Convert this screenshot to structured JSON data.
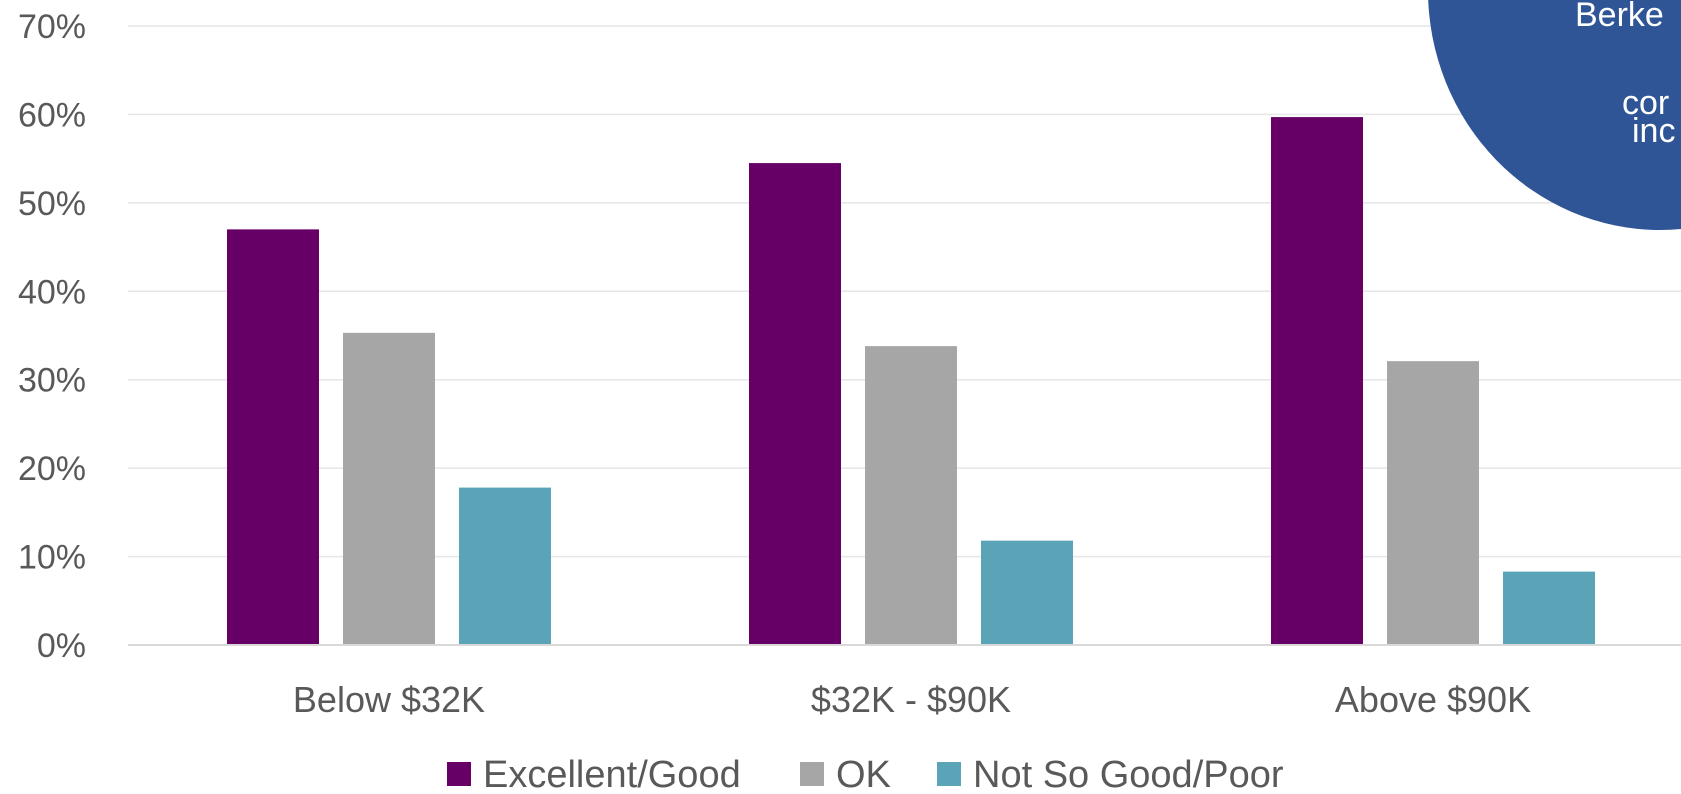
{
  "chart_data": {
    "type": "bar",
    "categories": [
      "Below $32K",
      "$32K - $90K",
      "Above $90K"
    ],
    "series": [
      {
        "name": "Excellent/Good",
        "color": "#660066",
        "values": [
          47,
          54.5,
          59.7
        ]
      },
      {
        "name": "OK",
        "color": "#A6A6A6",
        "values": [
          35.3,
          33.8,
          32.1
        ]
      },
      {
        "name": "Not So Good/Poor",
        "color": "#5BA3B7",
        "values": [
          17.8,
          11.8,
          8.3
        ]
      }
    ],
    "ylim": [
      0,
      70
    ],
    "yticks": [
      "0%",
      "10%",
      "20%",
      "30%",
      "40%",
      "50%",
      "60%",
      "70%"
    ],
    "grid": true,
    "legend": "bottom",
    "title": "",
    "xlabel": "",
    "ylabel": ""
  },
  "callout": {
    "color": "#2F5597",
    "lines": [
      "Berke",
      "cor",
      "inc"
    ]
  }
}
